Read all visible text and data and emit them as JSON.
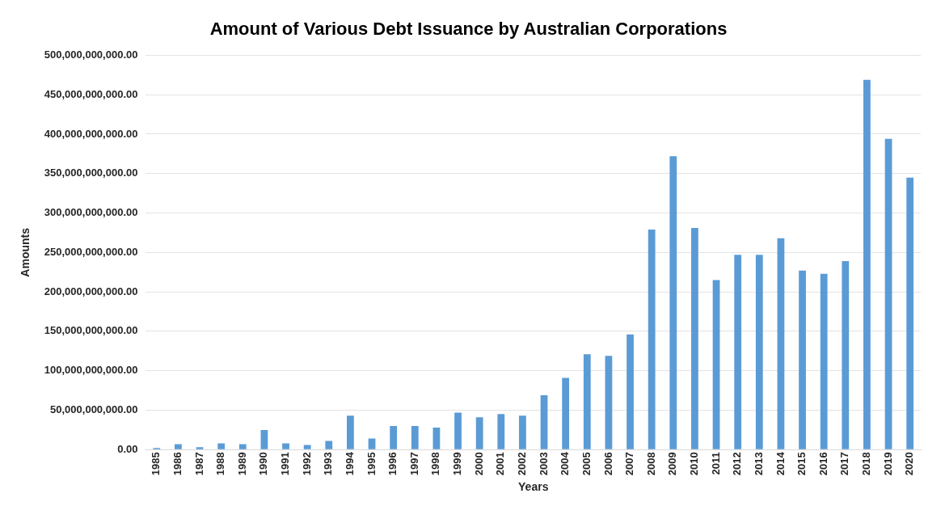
{
  "chart_data": {
    "type": "bar",
    "title": "Amount of Various Debt Issuance by Australian Corporations",
    "xlabel": "Years",
    "ylabel": "Amounts",
    "categories": [
      "1985",
      "1986",
      "1987",
      "1988",
      "1989",
      "1990",
      "1991",
      "1992",
      "1993",
      "1994",
      "1995",
      "1996",
      "1997",
      "1998",
      "1999",
      "2000",
      "2001",
      "2002",
      "2003",
      "2004",
      "2005",
      "2006",
      "2007",
      "2008",
      "2009",
      "2010",
      "2011",
      "2012",
      "2013",
      "2014",
      "2015",
      "2016",
      "2017",
      "2018",
      "2019",
      "2020"
    ],
    "values": [
      2000000000,
      7000000000,
      3000000000,
      8000000000,
      7000000000,
      25000000000,
      8000000000,
      6000000000,
      11000000000,
      43000000000,
      14000000000,
      30000000000,
      30000000000,
      28000000000,
      47000000000,
      41000000000,
      45000000000,
      43000000000,
      69000000000,
      91000000000,
      121000000000,
      119000000000,
      146000000000,
      279000000000,
      372000000000,
      281000000000,
      215000000000,
      247000000000,
      247000000000,
      268000000000,
      227000000000,
      223000000000,
      239000000000,
      469000000000,
      394000000000,
      345000000000
    ],
    "color": "#5b9bd5",
    "ylim": [
      0,
      500000000000
    ],
    "yticks": [
      {
        "value": 0,
        "label": "0.00"
      },
      {
        "value": 50000000000,
        "label": "50,000,000,000.00"
      },
      {
        "value": 100000000000,
        "label": "100,000,000,000.00"
      },
      {
        "value": 150000000000,
        "label": "150,000,000,000.00"
      },
      {
        "value": 200000000000,
        "label": "200,000,000,000.00"
      },
      {
        "value": 250000000000,
        "label": "250,000,000,000.00"
      },
      {
        "value": 300000000000,
        "label": "300,000,000,000.00"
      },
      {
        "value": 350000000000,
        "label": "350,000,000,000.00"
      },
      {
        "value": 400000000000,
        "label": "400,000,000,000.00"
      },
      {
        "value": 450000000000,
        "label": "450,000,000,000.00"
      },
      {
        "value": 500000000000,
        "label": "500,000,000,000.00"
      }
    ],
    "grid": "y",
    "legend": false
  }
}
